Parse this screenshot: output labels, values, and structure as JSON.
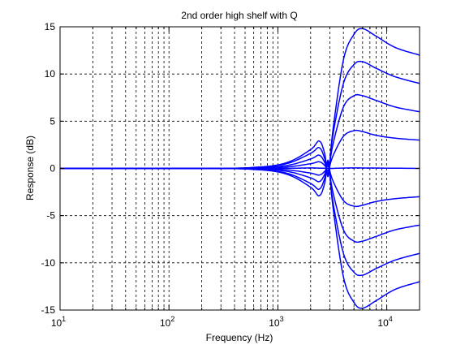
{
  "chart_data": {
    "type": "line",
    "title": "2nd order high shelf with Q",
    "xlabel": "Frequency (Hz)",
    "ylabel": "Response (dB)",
    "x_scale": "log",
    "xlim": [
      10,
      20000
    ],
    "ylim": [
      -15,
      15
    ],
    "x_ticks": [
      {
        "value": 10,
        "base": "10",
        "exp": "1"
      },
      {
        "value": 100,
        "base": "10",
        "exp": "2"
      },
      {
        "value": 1000,
        "base": "10",
        "exp": "3"
      },
      {
        "value": 10000,
        "base": "10",
        "exp": "4"
      }
    ],
    "y_ticks": [
      {
        "value": -15,
        "label": "-15"
      },
      {
        "value": -10,
        "label": "-10"
      },
      {
        "value": -5,
        "label": "-5"
      },
      {
        "value": 0,
        "label": "0"
      },
      {
        "value": 5,
        "label": "5"
      },
      {
        "value": 10,
        "label": "10"
      },
      {
        "value": 15,
        "label": "15"
      }
    ],
    "grid": true,
    "line_color": "#0000ff",
    "series": [
      {
        "x": [
          10,
          200,
          600,
          1200,
          2000,
          2400,
          2700,
          2900,
          3200,
          4000,
          5000,
          6000,
          8000,
          12000,
          20000
        ],
        "y": [
          0,
          0,
          0.1,
          0.6,
          2.0,
          2.9,
          1.5,
          -0.8,
          4.0,
          11.5,
          14.2,
          14.8,
          14.0,
          12.8,
          12.0
        ]
      },
      {
        "x": [
          10,
          200,
          600,
          1200,
          2000,
          2400,
          2700,
          2900,
          3200,
          4000,
          5000,
          6000,
          8000,
          12000,
          20000
        ],
        "y": [
          0,
          0,
          0.1,
          0.5,
          1.6,
          2.2,
          1.0,
          -0.6,
          3.5,
          9.0,
          11.0,
          11.3,
          10.6,
          9.7,
          9.0
        ]
      },
      {
        "x": [
          10,
          200,
          600,
          1200,
          2000,
          2400,
          2700,
          2900,
          3200,
          4000,
          5000,
          6000,
          8000,
          12000,
          20000
        ],
        "y": [
          0,
          0,
          0.05,
          0.3,
          1.0,
          1.4,
          0.6,
          -0.4,
          2.5,
          6.5,
          7.7,
          7.7,
          7.2,
          6.5,
          6.0
        ]
      },
      {
        "x": [
          10,
          200,
          600,
          1200,
          2000,
          2400,
          2700,
          2900,
          3200,
          4000,
          5000,
          6000,
          8000,
          12000,
          20000
        ],
        "y": [
          0,
          0,
          0.02,
          0.15,
          0.5,
          0.7,
          0.3,
          -0.2,
          1.3,
          3.4,
          4.0,
          3.9,
          3.5,
          3.2,
          3.0
        ]
      },
      {
        "x": [
          10,
          200,
          1000,
          2000,
          3000,
          5000,
          20000
        ],
        "y": [
          0,
          0,
          0,
          0.05,
          0,
          0.05,
          0
        ]
      },
      {
        "x": [
          10,
          200,
          600,
          1200,
          2000,
          2400,
          2700,
          2900,
          3200,
          4000,
          5000,
          6000,
          8000,
          12000,
          20000
        ],
        "y": [
          0,
          0,
          -0.02,
          -0.15,
          -0.5,
          -0.7,
          -0.3,
          0.2,
          -1.3,
          -3.4,
          -4.0,
          -3.9,
          -3.5,
          -3.2,
          -3.0
        ]
      },
      {
        "x": [
          10,
          200,
          600,
          1200,
          2000,
          2400,
          2700,
          2900,
          3200,
          4000,
          5000,
          6000,
          8000,
          12000,
          20000
        ],
        "y": [
          0,
          0,
          -0.05,
          -0.3,
          -1.0,
          -1.4,
          -0.6,
          0.4,
          -2.5,
          -6.5,
          -7.7,
          -7.7,
          -7.2,
          -6.5,
          -6.0
        ]
      },
      {
        "x": [
          10,
          200,
          600,
          1200,
          2000,
          2400,
          2700,
          2900,
          3200,
          4000,
          5000,
          6000,
          8000,
          12000,
          20000
        ],
        "y": [
          0,
          0,
          -0.1,
          -0.5,
          -1.6,
          -2.2,
          -1.0,
          0.6,
          -3.5,
          -9.0,
          -11.0,
          -11.3,
          -10.6,
          -9.7,
          -9.0
        ]
      },
      {
        "x": [
          10,
          200,
          600,
          1200,
          2000,
          2400,
          2700,
          2900,
          3200,
          4000,
          5000,
          6000,
          8000,
          12000,
          20000
        ],
        "y": [
          0,
          0,
          -0.1,
          -0.6,
          -2.0,
          -2.9,
          -1.5,
          0.8,
          -4.0,
          -11.5,
          -14.2,
          -14.8,
          -14.0,
          -12.8,
          -12.0
        ]
      }
    ]
  }
}
